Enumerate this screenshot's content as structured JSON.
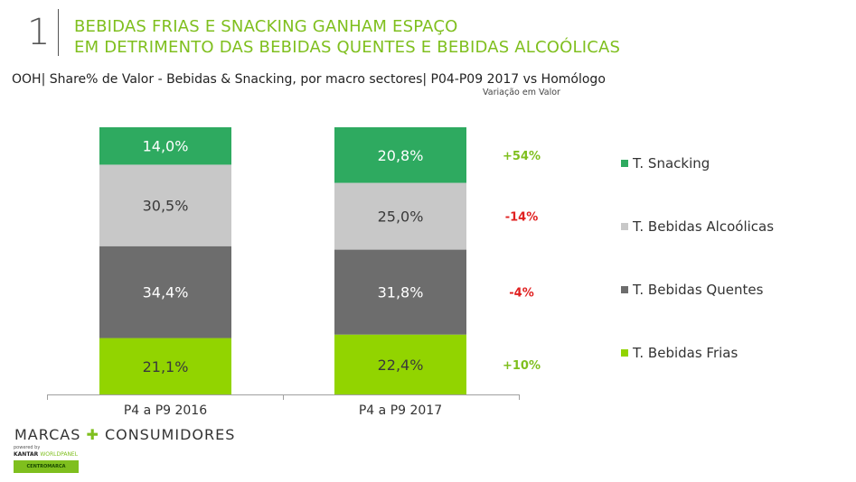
{
  "header": {
    "section_number": "1",
    "title_line1": "BEBIDAS FRIAS E SNACKING GANHAM ESPAÇO",
    "title_line2": "EM DETRIMENTO DAS BEBIDAS QUENTES E BEBIDAS ALCOÓLICAS",
    "subtitle": "OOH| Share% de Valor - Bebidas & Snacking, por macro sectores| P04-P09 2017 vs Homólogo",
    "variation_header": "Variação em Valor"
  },
  "chart_data": {
    "type": "bar",
    "stacked": true,
    "categories": [
      "P4 a P9 2016",
      "P4 a P9 2017"
    ],
    "series": [
      {
        "name": "T. Bebidas Frias",
        "values": [
          21.1,
          22.4
        ],
        "labels": [
          "21,1%",
          "22,4%"
        ],
        "color": "#92d400"
      },
      {
        "name": "T. Bebidas Quentes",
        "values": [
          34.4,
          31.8
        ],
        "labels": [
          "34,4%",
          "31,8%"
        ],
        "color": "#6d6d6d"
      },
      {
        "name": "T. Bebidas Alcoólicas",
        "values": [
          30.5,
          25.0
        ],
        "labels": [
          "30,5%",
          "25,0%"
        ],
        "color": "#c8c8c8"
      },
      {
        "name": "T. Snacking",
        "values": [
          14.0,
          20.8
        ],
        "labels": [
          "14,0%",
          "20,8%"
        ],
        "color": "#2eaa60"
      }
    ],
    "variations": [
      {
        "series": "T. Snacking",
        "text": "+54%",
        "color": "#7fbf1e"
      },
      {
        "series": "T. Bebidas Alcoólicas",
        "text": "-14%",
        "color": "#e02020"
      },
      {
        "series": "T. Bebidas Quentes",
        "text": "-4%",
        "color": "#e02020"
      },
      {
        "series": "T. Bebidas Frias",
        "text": "+10%",
        "color": "#7fbf1e"
      }
    ],
    "ylim": [
      0,
      100
    ],
    "legend_position": "right"
  },
  "legend": [
    {
      "name": "T. Snacking",
      "color": "#2eaa60"
    },
    {
      "name": "T. Bebidas Alcoólicas",
      "color": "#c8c8c8"
    },
    {
      "name": "T. Bebidas Quentes",
      "color": "#6d6d6d"
    },
    {
      "name": "T. Bebidas Frias",
      "color": "#92d400"
    }
  ],
  "logo": {
    "part1": "MARCAS",
    "part2": "CONSUMIDORES",
    "powered": "powered by",
    "kantar1": "KANTAR",
    "kantar2": "WORLDPANEL",
    "box": "CENTROMARCA"
  }
}
